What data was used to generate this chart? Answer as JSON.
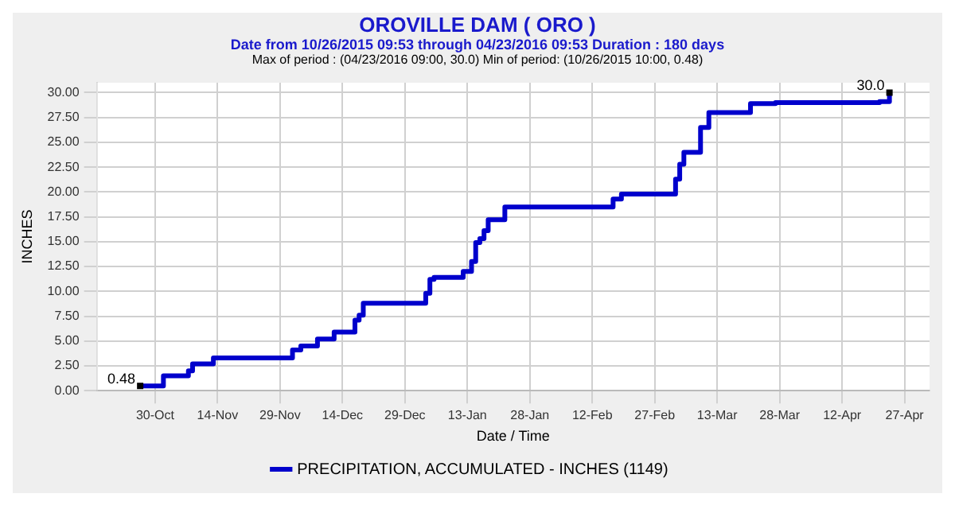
{
  "chart_data": {
    "type": "step",
    "title": "OROVILLE DAM ( ORO )",
    "subtitle": "Date from 10/26/2015 09:53 through 04/23/2016 09:53 Duration : 180 days",
    "annotations": [
      "Max of period : (04/23/2016 09:00, 30.0)  Min of period: (10/26/2015 10:00,  0.48)",
      {
        "text": "30.0",
        "x": "2016-04-23T09:00",
        "y": 30
      },
      {
        "text": "0.48",
        "x": "2015-10-26T10:00",
        "y": 0.48
      }
    ],
    "xlabel": "Date / Time",
    "ylabel": "INCHES",
    "series": [
      {
        "name": "PRECIPITATION, ACCUMULATED - INCHES (1149)",
        "color": "#0000cc",
        "x": [
          "2015-10-26T10:00",
          "2015-11-01",
          "2015-11-07",
          "2015-11-08",
          "2015-11-13",
          "2015-12-02",
          "2015-12-04",
          "2015-12-08",
          "2015-12-12",
          "2015-12-17",
          "2015-12-18",
          "2015-12-19",
          "2015-12-20",
          "2016-01-03",
          "2016-01-04",
          "2016-01-05",
          "2016-01-12",
          "2016-01-14",
          "2016-01-15",
          "2016-01-16",
          "2016-01-17",
          "2016-01-18",
          "2016-01-22",
          "2016-01-29",
          "2016-02-17",
          "2016-02-19",
          "2016-03-03",
          "2016-03-04",
          "2016-03-05",
          "2016-03-06",
          "2016-03-09",
          "2016-03-11",
          "2016-03-12",
          "2016-03-21",
          "2016-03-27",
          "2016-04-21",
          "2016-04-23T09:00"
        ],
        "values": [
          0.48,
          1.5,
          2.0,
          2.7,
          3.3,
          4.1,
          4.5,
          5.2,
          5.9,
          7.1,
          7.6,
          8.8,
          8.8,
          9.8,
          11.2,
          11.4,
          12.0,
          13.0,
          14.9,
          15.3,
          16.1,
          17.2,
          18.5,
          18.5,
          19.3,
          19.8,
          21.3,
          22.8,
          24.0,
          24.0,
          26.5,
          28.0,
          28.0,
          28.9,
          29.0,
          29.1,
          30.0
        ]
      }
    ],
    "xlim": [
      "2015-10-16",
      "2016-05-03"
    ],
    "xticks": [
      {
        "value": "2015-10-30",
        "label": "30-Oct"
      },
      {
        "value": "2015-11-14",
        "label": "14-Nov"
      },
      {
        "value": "2015-11-29",
        "label": "29-Nov"
      },
      {
        "value": "2015-12-14",
        "label": "14-Dec"
      },
      {
        "value": "2015-12-29",
        "label": "29-Dec"
      },
      {
        "value": "2016-01-13",
        "label": "13-Jan"
      },
      {
        "value": "2016-01-28",
        "label": "28-Jan"
      },
      {
        "value": "2016-02-12",
        "label": "12-Feb"
      },
      {
        "value": "2016-02-27",
        "label": "27-Feb"
      },
      {
        "value": "2016-03-13",
        "label": "13-Mar"
      },
      {
        "value": "2016-03-28",
        "label": "28-Mar"
      },
      {
        "value": "2016-04-12",
        "label": "12-Apr"
      },
      {
        "value": "2016-04-27",
        "label": "27-Apr"
      }
    ],
    "ylim": [
      0,
      31
    ],
    "yticks": [
      {
        "value": 0,
        "label": "0.00"
      },
      {
        "value": 2.5,
        "label": "2.50"
      },
      {
        "value": 5,
        "label": "5.00"
      },
      {
        "value": 7.5,
        "label": "7.50"
      },
      {
        "value": 10,
        "label": "10.00"
      },
      {
        "value": 12.5,
        "label": "12.50"
      },
      {
        "value": 15,
        "label": "15.00"
      },
      {
        "value": 17.5,
        "label": "17.50"
      },
      {
        "value": 20,
        "label": "20.00"
      },
      {
        "value": 22.5,
        "label": "22.50"
      },
      {
        "value": 25,
        "label": "25.00"
      },
      {
        "value": 27.5,
        "label": "27.50"
      },
      {
        "value": 30,
        "label": "30.00"
      }
    ],
    "grid": true,
    "legend": "bottom"
  }
}
